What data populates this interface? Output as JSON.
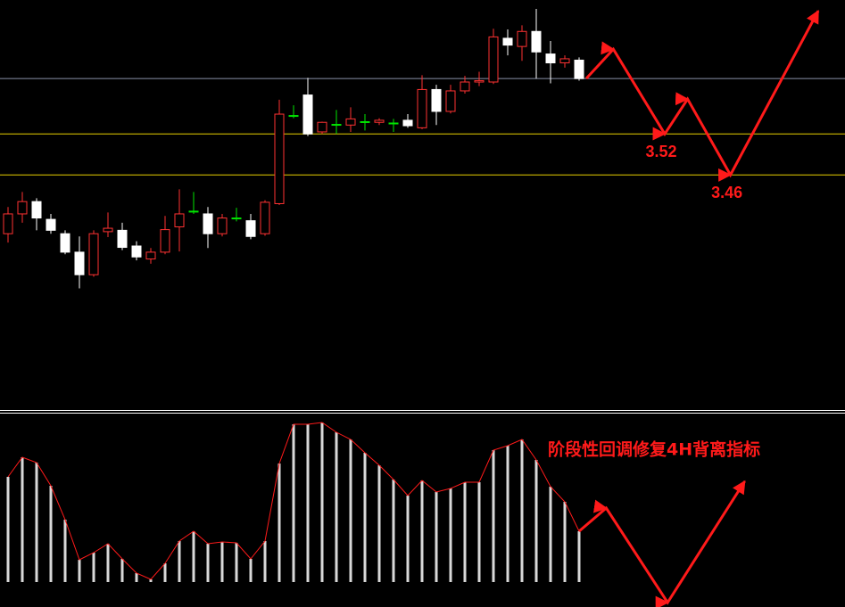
{
  "chart_data": [
    {
      "type": "candlestick",
      "ylim": [
        3.116,
        3.716
      ],
      "up_color": "#ff3232",
      "down_color": "#ffffff",
      "doji_color": "#00e600",
      "open": [
        3.374,
        3.403,
        3.421,
        3.395,
        3.374,
        3.347,
        3.314,
        3.377,
        3.379,
        3.356,
        3.337,
        3.347,
        3.384,
        3.407,
        3.403,
        3.374,
        3.397,
        3.393,
        3.374,
        3.418,
        3.547,
        3.577,
        3.523,
        3.534,
        3.533,
        3.538,
        3.537,
        3.536,
        3.54,
        3.529,
        3.585,
        3.553,
        3.583,
        3.596,
        3.596,
        3.66,
        3.648,
        3.67,
        3.637,
        3.624,
        3.628
      ],
      "high": [
        3.413,
        3.435,
        3.426,
        3.403,
        3.379,
        3.37,
        3.379,
        3.405,
        3.39,
        3.363,
        3.353,
        3.4,
        3.439,
        3.435,
        3.413,
        3.403,
        3.412,
        3.403,
        3.423,
        3.57,
        3.562,
        3.602,
        3.538,
        3.555,
        3.559,
        3.549,
        3.543,
        3.542,
        3.549,
        3.606,
        3.592,
        3.592,
        3.605,
        3.611,
        3.674,
        3.673,
        3.679,
        3.703,
        3.656,
        3.635,
        3.632
      ],
      "low": [
        3.361,
        3.39,
        3.379,
        3.374,
        3.344,
        3.294,
        3.311,
        3.369,
        3.35,
        3.335,
        3.33,
        3.344,
        3.348,
        3.403,
        3.353,
        3.37,
        3.392,
        3.366,
        3.371,
        3.416,
        3.543,
        3.517,
        3.52,
        3.52,
        3.523,
        3.525,
        3.533,
        3.523,
        3.529,
        3.527,
        3.533,
        3.55,
        3.579,
        3.59,
        3.593,
        3.635,
        3.627,
        3.601,
        3.594,
        3.617,
        3.598
      ],
      "close": [
        3.403,
        3.421,
        3.397,
        3.379,
        3.347,
        3.314,
        3.374,
        3.382,
        3.354,
        3.34,
        3.347,
        3.38,
        3.403,
        3.407,
        3.374,
        3.397,
        3.397,
        3.37,
        3.42,
        3.549,
        3.547,
        3.52,
        3.537,
        3.534,
        3.542,
        3.538,
        3.54,
        3.536,
        3.532,
        3.585,
        3.553,
        3.583,
        3.596,
        3.598,
        3.662,
        3.65,
        3.67,
        3.64,
        3.624,
        3.63,
        3.601
      ],
      "levels": [
        {
          "value": 3.601,
          "color": "#8a90a8"
        },
        {
          "value": 3.52,
          "color": "#e8d000"
        },
        {
          "value": 3.46,
          "color": "#e8d000"
        }
      ],
      "projection": {
        "color": "#ff1a1a",
        "x": [
          40.5,
          42.4,
          46,
          47.6,
          50.6,
          56.75
        ],
        "values": [
          3.601,
          3.644,
          3.52,
          3.571,
          3.46,
          3.7
        ]
      }
    },
    {
      "type": "bar",
      "title": "阶段性回调修复4H背离指标",
      "color": "#d8d8d8",
      "line_color": "#ff1a1a",
      "ylim": [
        -28,
        191
      ],
      "values": [
        118,
        140,
        134,
        108,
        70,
        25,
        33,
        43,
        26,
        10,
        3,
        21,
        46,
        57,
        43,
        45,
        44,
        26,
        46,
        133,
        177,
        177,
        179,
        168,
        160,
        145,
        131,
        115,
        97,
        114,
        101,
        105,
        112,
        112,
        148,
        153,
        160,
        137,
        107,
        90,
        57
      ],
      "projection": {
        "color": "#ff1a1a",
        "x": [
          40,
          41.9,
          46.2,
          51.6
        ],
        "values": [
          57,
          83,
          -23,
          113
        ]
      }
    }
  ]
}
